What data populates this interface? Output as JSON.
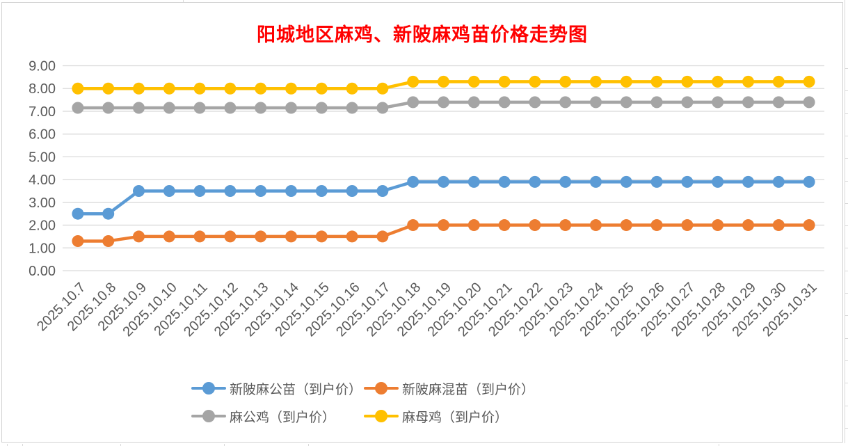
{
  "title": {
    "text": "阳城地区麻鸡、新陂麻鸡苗价格走势图",
    "color": "#FF0000"
  },
  "chart_data": {
    "type": "line",
    "title": "阳城地区麻鸡、新陂麻鸡苗价格走势图",
    "categories": [
      "2025.10.7",
      "2025.10.8",
      "2025.10.9",
      "2025.10.10",
      "2025.10.11",
      "2025.10.12",
      "2025.10.13",
      "2025.10.14",
      "2025.10.15",
      "2025.10.16",
      "2025.10.17",
      "2025.10.18",
      "2025.10.19",
      "2025.10.20",
      "2025.10.21",
      "2025.10.22",
      "2025.10.23",
      "2025.10.24",
      "2025.10.25",
      "2025.10.26",
      "2025.10.27",
      "2025.10.28",
      "2025.10.29",
      "2025.10.30",
      "2025.10.31"
    ],
    "series": [
      {
        "name": "新陂麻公苗（到户价）",
        "color": "#5B9BD5",
        "values": [
          2.5,
          2.5,
          3.5,
          3.5,
          3.5,
          3.5,
          3.5,
          3.5,
          3.5,
          3.5,
          3.5,
          3.9,
          3.9,
          3.9,
          3.9,
          3.9,
          3.9,
          3.9,
          3.9,
          3.9,
          3.9,
          3.9,
          3.9,
          3.9,
          3.9
        ]
      },
      {
        "name": "新陂麻混苗（到户价）",
        "color": "#ED7D31",
        "values": [
          1.3,
          1.3,
          1.5,
          1.5,
          1.5,
          1.5,
          1.5,
          1.5,
          1.5,
          1.5,
          1.5,
          2.0,
          2.0,
          2.0,
          2.0,
          2.0,
          2.0,
          2.0,
          2.0,
          2.0,
          2.0,
          2.0,
          2.0,
          2.0,
          2.0
        ]
      },
      {
        "name": "麻公鸡（到户价）",
        "color": "#A5A5A5",
        "values": [
          7.15,
          7.15,
          7.15,
          7.15,
          7.15,
          7.15,
          7.15,
          7.15,
          7.15,
          7.15,
          7.15,
          7.4,
          7.4,
          7.4,
          7.4,
          7.4,
          7.4,
          7.4,
          7.4,
          7.4,
          7.4,
          7.4,
          7.4,
          7.4,
          7.4
        ]
      },
      {
        "name": "麻母鸡（到户价）",
        "color": "#FFC000",
        "values": [
          8.0,
          8.0,
          8.0,
          8.0,
          8.0,
          8.0,
          8.0,
          8.0,
          8.0,
          8.0,
          8.0,
          8.3,
          8.3,
          8.3,
          8.3,
          8.3,
          8.3,
          8.3,
          8.3,
          8.3,
          8.3,
          8.3,
          8.3,
          8.3,
          8.3
        ]
      }
    ],
    "ylim": [
      0,
      9
    ],
    "yticks": [
      "0.00",
      "1.00",
      "2.00",
      "3.00",
      "4.00",
      "5.00",
      "6.00",
      "7.00",
      "8.00",
      "9.00"
    ],
    "grid": true,
    "legend_position": "bottom",
    "legend_rows": [
      [
        0,
        1
      ],
      [
        2,
        3
      ]
    ],
    "axis_text_color": "#595959",
    "grid_color": "#D9D9D9"
  }
}
